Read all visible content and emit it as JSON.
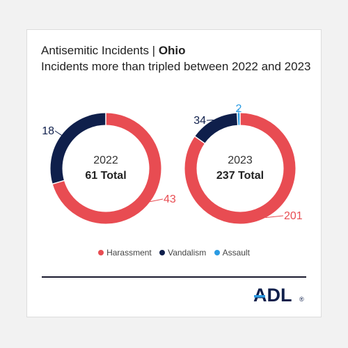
{
  "colors": {
    "harassment": "#e84c52",
    "vandalism": "#0f1f4b",
    "assault": "#2a9be3"
  },
  "header": {
    "title_prefix": "Antisemitic Incidents | ",
    "title_state": "Ohio",
    "subtitle": "Incidents more than tripled between 2022 and 2023"
  },
  "chart_data": [
    {
      "type": "pie",
      "center_year": "2022",
      "center_total": "61 Total",
      "categories": [
        "Harassment",
        "Vandalism",
        "Assault"
      ],
      "values": [
        43,
        18,
        0
      ]
    },
    {
      "type": "pie",
      "center_year": "2023",
      "center_total": "237 Total",
      "categories": [
        "Harassment",
        "Vandalism",
        "Assault"
      ],
      "values": [
        201,
        34,
        2
      ]
    }
  ],
  "legend": {
    "items": [
      {
        "label": "Harassment",
        "color_key": "harassment"
      },
      {
        "label": "Vandalism",
        "color_key": "vandalism"
      },
      {
        "label": "Assault",
        "color_key": "assault"
      }
    ]
  },
  "logo": {
    "text": "ADL"
  }
}
